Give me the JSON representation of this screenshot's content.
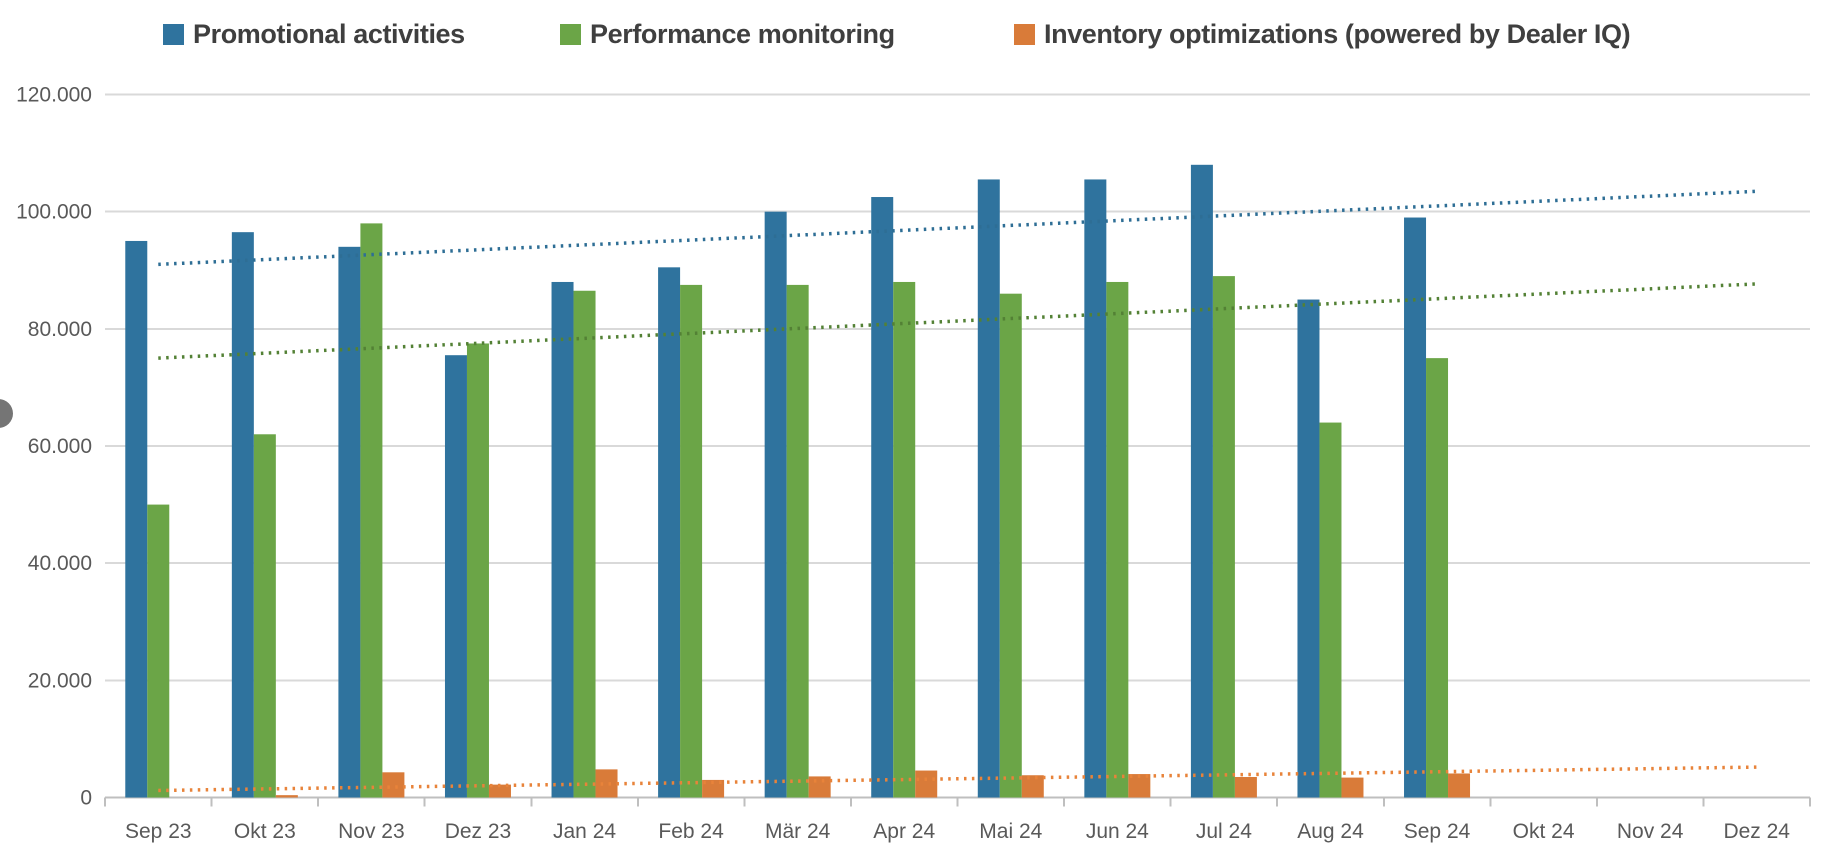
{
  "legend": [
    {
      "label": "Promotional activities",
      "color": "#2F739E"
    },
    {
      "label": "Performance monitoring",
      "color": "#6BA547"
    },
    {
      "label": "Inventory optimizations (powered by Dealer IQ)",
      "color": "#D97B39"
    }
  ],
  "chart_data": {
    "type": "bar",
    "title": "",
    "xlabel": "",
    "ylabel": "",
    "legend_position": "top",
    "grid": true,
    "ylim": [
      0,
      120000
    ],
    "y_tick_step": 20000,
    "y_tick_labels": [
      "0",
      "20.000",
      "40.000",
      "60.000",
      "80.000",
      "100.000",
      "120.000"
    ],
    "categories": [
      "Sep 23",
      "Okt 23",
      "Nov 23",
      "Dez 23",
      "Jan 24",
      "Feb 24",
      "Mär 24",
      "Apr 24",
      "Mai 24",
      "Jun 24",
      "Jul 24",
      "Aug 24",
      "Sep 24",
      "Okt 24",
      "Nov 24",
      "Dez 24"
    ],
    "series": [
      {
        "name": "Promotional activities",
        "color": "#2F739E",
        "values": [
          95000,
          96500,
          94000,
          75500,
          88000,
          90500,
          100000,
          102500,
          105500,
          105500,
          108000,
          85000,
          99000,
          null,
          null,
          null
        ]
      },
      {
        "name": "Performance monitoring",
        "color": "#6BA547",
        "values": [
          50000,
          62000,
          98000,
          77500,
          86500,
          87500,
          87500,
          88000,
          86000,
          88000,
          89000,
          64000,
          75000,
          null,
          null,
          null
        ]
      },
      {
        "name": "Inventory optimizations (powered by Dealer IQ)",
        "color": "#D97B39",
        "values": [
          0,
          400,
          4300,
          2200,
          4800,
          3000,
          3600,
          4600,
          3800,
          4000,
          3500,
          3400,
          4100,
          null,
          null,
          null
        ]
      }
    ],
    "trendlines": [
      {
        "series": "Promotional activities",
        "style": "dotted",
        "color": "#2E6E95",
        "start_value": 91000,
        "end_value": 103500
      },
      {
        "series": "Performance monitoring",
        "style": "dotted",
        "color": "#538135",
        "start_value": 75000,
        "end_value": 87700
      },
      {
        "series": "Inventory optimizations (powered by Dealer IQ)",
        "style": "dotted",
        "color": "#E8833A",
        "start_value": 1200,
        "end_value": 5200
      }
    ],
    "colors": {
      "axis_text": "#595959",
      "gridline": "#D9D9D9",
      "axis_line": "#BFBFBF"
    }
  }
}
